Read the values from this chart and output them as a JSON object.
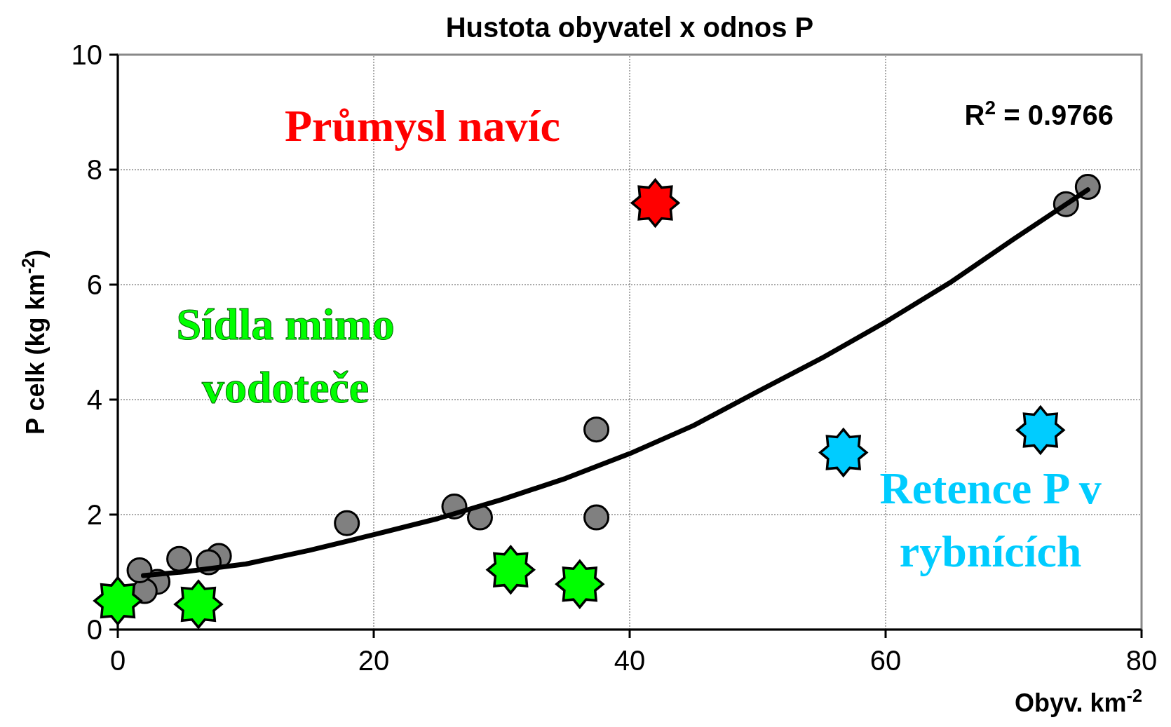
{
  "chart_data": {
    "type": "scatter",
    "title": "Hustota obyvatel x odnos P",
    "xlabel": "Obyv. km$^{-2}$",
    "ylabel": "P celk (kg km$^{-2}$)",
    "xlim": [
      0,
      80
    ],
    "ylim": [
      0,
      10
    ],
    "xticks": [
      0,
      20,
      40,
      60,
      80
    ],
    "yticks": [
      0,
      2,
      4,
      6,
      8,
      10
    ],
    "grid": true,
    "legend": false,
    "annotations": [
      "R$^{2}$ = 0.9766"
    ],
    "series": [
      {
        "color": "#808080",
        "marker": "circle",
        "x": [
          1.7,
          2.1,
          3.1,
          4.8,
          7.1,
          7.9,
          17.9,
          26.3,
          28.3,
          37.4,
          37.4,
          74.1,
          75.8
        ],
        "values": [
          1.03,
          0.67,
          0.83,
          1.23,
          1.17,
          1.28,
          1.85,
          2.14,
          1.95,
          3.48,
          1.95,
          7.4,
          7.7
        ]
      },
      {
        "name": "Sídla mimo vodoteče",
        "color": "#00ff00",
        "marker": "star",
        "x": [
          0,
          6.3,
          30.7,
          36.1
        ],
        "values": [
          0.5,
          0.44,
          1.04,
          0.79
        ]
      },
      {
        "name": "Průmysl navíc",
        "color": "#ff0000",
        "marker": "star",
        "x": [
          42
        ],
        "values": [
          7.42
        ]
      },
      {
        "name": "Retence P v rybnících",
        "color": "#00ccff",
        "marker": "star",
        "x": [
          56.7,
          72.1
        ],
        "values": [
          3.08,
          3.47
        ]
      },
      {
        "type": "line",
        "color": "#000000",
        "line_style": "solid",
        "x": [
          2,
          5,
          10,
          15,
          20,
          25,
          30,
          35,
          40,
          45,
          50,
          55,
          60,
          65,
          70,
          75.8
        ],
        "values": [
          0.94,
          1.0,
          1.14,
          1.38,
          1.65,
          1.93,
          2.26,
          2.63,
          3.06,
          3.55,
          4.14,
          4.72,
          5.35,
          6.03,
          6.79,
          7.65
        ]
      }
    ]
  }
}
